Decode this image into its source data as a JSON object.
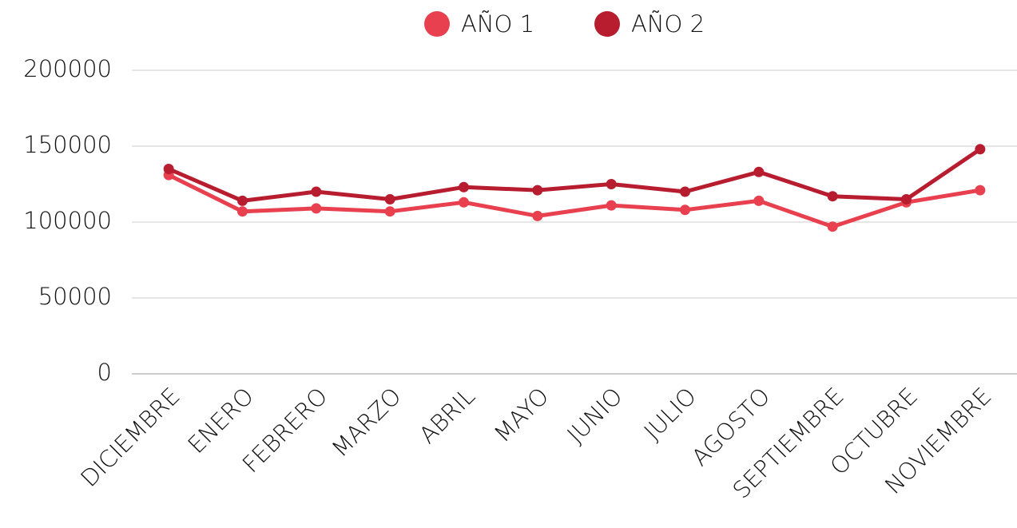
{
  "chart_data": {
    "type": "line",
    "categories": [
      "DICIEMBRE",
      "ENERO",
      "FEBRERO",
      "MARZO",
      "ABRIL",
      "MAYO",
      "JUNIO",
      "JULIO",
      "AGOSTO",
      "SEPTIEMBRE",
      "OCTUBRE",
      "NOVIEMBRE"
    ],
    "series": [
      {
        "name": "AÑO 1",
        "color": "#e8404f",
        "values": [
          131000,
          107000,
          109000,
          107000,
          113000,
          104000,
          111000,
          108000,
          114000,
          97000,
          113000,
          121000
        ]
      },
      {
        "name": "AÑO 2",
        "color": "#b71c2f",
        "values": [
          135000,
          114000,
          120000,
          115000,
          123000,
          121000,
          125000,
          120000,
          133000,
          117000,
          115000,
          148000
        ]
      }
    ],
    "ylim": [
      0,
      200000
    ],
    "yticks": [
      0,
      50000,
      100000,
      150000,
      200000
    ],
    "grid": true,
    "legend": "top"
  }
}
